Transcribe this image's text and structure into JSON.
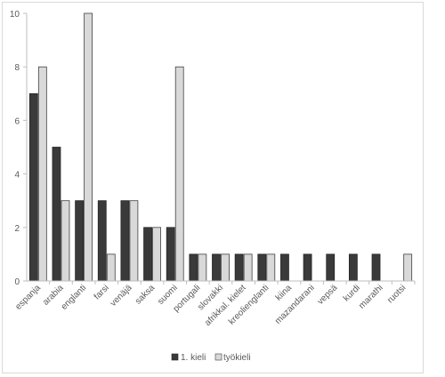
{
  "chart_data": {
    "type": "bar",
    "categories": [
      "espanja",
      "arabia",
      "englanti",
      "farsi",
      "venäjä",
      "saksa",
      "suomi",
      "portugali",
      "slovakki",
      "afrikkal. kielet",
      "kreolienglanti",
      "kiina",
      "mazandarani",
      "vepsä",
      "kurdi",
      "marathi",
      "ruotsi"
    ],
    "series": [
      {
        "name": "1. kieli",
        "values": [
          7,
          5,
          3,
          3,
          3,
          2,
          2,
          1,
          1,
          1,
          1,
          1,
          1,
          1,
          1,
          1,
          0
        ],
        "color": "#3a3a3a"
      },
      {
        "name": "työkieli",
        "values": [
          8,
          3,
          10,
          1,
          3,
          2,
          8,
          1,
          1,
          1,
          1,
          0,
          0,
          0,
          0,
          0,
          1
        ],
        "color": "#d9d9d9"
      }
    ],
    "ylim": [
      0,
      10
    ],
    "yticks": [
      0,
      2,
      4,
      6,
      8,
      10
    ],
    "grid": false,
    "legend": "bottom"
  }
}
